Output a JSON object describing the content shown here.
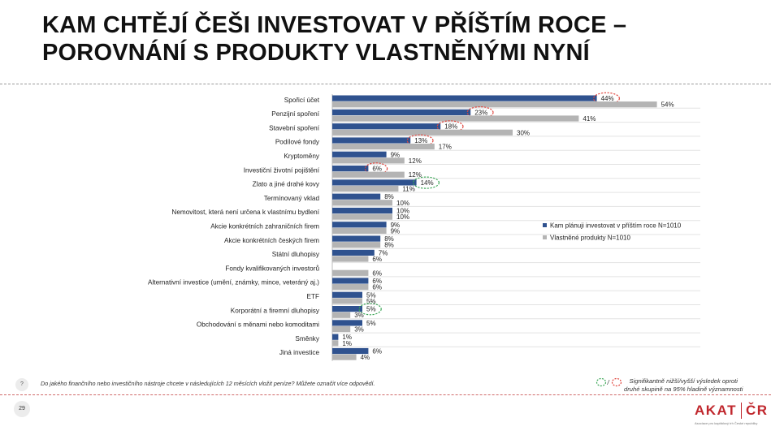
{
  "title": {
    "line1": "KAM CHTĚJÍ ČEŠI INVESTOVAT V PŘÍŠTÍM ROCE –",
    "line2": "POROVNÁNÍ S PRODUKTY VLASTNĚNÝMI NYNÍ"
  },
  "footer": {
    "question_marker": "?",
    "question": "Do jakého finančního nebo investičního nástroje chcete v následujících 12 měsících vložit peníze?  Můžete označit více odpovědí.",
    "page_number": "29",
    "significance_sep": "/",
    "significance_line1": "Signifikantně nižší/vyšší výsledek oproti",
    "significance_line2": "druhé skupině na 95% hladině významnosti",
    "logo_left": "AKAT",
    "logo_right": "ČR",
    "logo_sub": "Asociace pro kapitálový trh České republiky"
  },
  "colors": {
    "plan": "#2f528f",
    "own": "#b4b4b4",
    "sig_higher": "#e0443c",
    "sig_lower": "#3aa655",
    "brand": "#c0272d"
  },
  "chart_data": {
    "type": "bar",
    "orientation": "horizontal",
    "categories": [
      "Spořicí účet",
      "Penzijní spoření",
      "Stavební spoření",
      "Podílové fondy",
      "Kryptoměny",
      "Investiční životní pojištění",
      "Zlato a jiné drahé kovy",
      "Termínovaný vklad",
      "Nemovitost, která není určena k vlastnímu bydlení",
      "Akcie konkrétních zahraničních firem",
      "Akcie konkrétních českých firem",
      "Státní dluhopisy",
      "Fondy kvalifikovaných investorů",
      "Alternativní investice (umění, známky, mince, veteráný aj.)",
      "ETF",
      "Korporátní a firemní dluhopisy",
      "Obchodování s měnami nebo komoditami",
      "Směnky",
      "Jiná investice"
    ],
    "series": [
      {
        "name": "Kam plánuji investovat v příštím roce N=1010",
        "values": [
          44,
          23,
          18,
          13,
          9,
          6,
          14,
          8,
          10,
          9,
          8,
          7,
          null,
          6,
          5,
          5,
          5,
          1,
          6
        ],
        "labels": [
          "44%",
          "23%",
          "18%",
          "13%",
          "9%",
          "6%",
          "14%",
          "8%",
          "10%",
          "9%",
          "8%",
          "7%",
          "",
          "6%",
          "5%",
          "5%",
          "5%",
          "1%",
          "6%"
        ],
        "significance": [
          "higher",
          "higher",
          "higher",
          "higher",
          null,
          "higher",
          "lower",
          null,
          null,
          null,
          null,
          null,
          null,
          null,
          null,
          "lower",
          null,
          null,
          null
        ]
      },
      {
        "name": "Vlastněné produkty N=1010",
        "values": [
          54,
          41,
          30,
          17,
          12,
          12,
          11,
          10,
          10,
          9,
          8,
          6,
          6,
          6,
          5,
          3,
          3,
          1,
          4
        ],
        "labels": [
          "54%",
          "41%",
          "30%",
          "17%",
          "12%",
          "12%",
          "11%",
          "10%",
          "10%",
          "9%",
          "8%",
          "6%",
          "6%",
          "6%",
          "5%",
          "3%",
          "3%",
          "1%",
          "4%"
        ]
      }
    ],
    "xlim": [
      0,
      60
    ],
    "grid": true,
    "legend_position": "right"
  }
}
